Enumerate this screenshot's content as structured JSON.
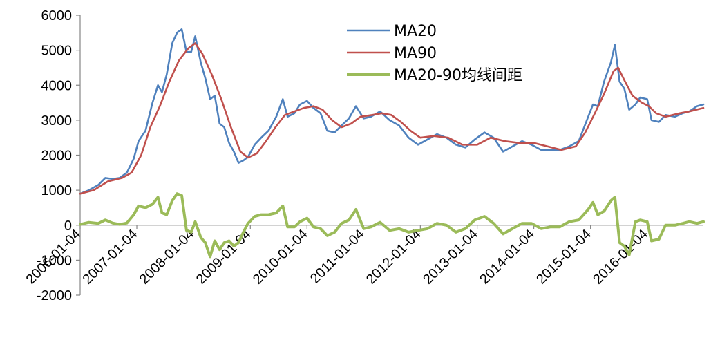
{
  "chart_data": {
    "type": "line",
    "title": "",
    "xlabel": "",
    "ylabel": "",
    "ylim": [
      -2000,
      6000
    ],
    "yticks": [
      6000,
      5000,
      4000,
      3000,
      2000,
      1000,
      0,
      -1000,
      -2000
    ],
    "xlim": [
      "2006-01-04",
      "2016-12-31"
    ],
    "xtick_labels": [
      "2006-01-04",
      "2007-01-04",
      "2008-01-04",
      "2009-01-04",
      "2010-01-04",
      "2011-01-04",
      "2012-01-04",
      "2013-01-04",
      "2014-01-04",
      "2015-01-04",
      "2016-01-04"
    ],
    "grid": false,
    "legend_position": "top-center",
    "series": [
      {
        "name": "MA20",
        "color": "#4f81bd",
        "points": [
          [
            "2006-01-04",
            900
          ],
          [
            "2006-03-01",
            1000
          ],
          [
            "2006-05-01",
            1150
          ],
          [
            "2006-06-15",
            1350
          ],
          [
            "2006-08-01",
            1320
          ],
          [
            "2006-09-15",
            1350
          ],
          [
            "2006-11-01",
            1500
          ],
          [
            "2006-12-15",
            1900
          ],
          [
            "2007-01-15",
            2400
          ],
          [
            "2007-03-01",
            2700
          ],
          [
            "2007-04-15",
            3500
          ],
          [
            "2007-05-20",
            4000
          ],
          [
            "2007-06-15",
            3800
          ],
          [
            "2007-07-15",
            4300
          ],
          [
            "2007-08-20",
            5200
          ],
          [
            "2007-09-20",
            5500
          ],
          [
            "2007-10-20",
            5600
          ],
          [
            "2007-11-20",
            4950
          ],
          [
            "2007-12-20",
            4950
          ],
          [
            "2008-01-15",
            5400
          ],
          [
            "2008-02-20",
            4650
          ],
          [
            "2008-03-20",
            4200
          ],
          [
            "2008-04-20",
            3600
          ],
          [
            "2008-05-20",
            3700
          ],
          [
            "2008-06-20",
            2900
          ],
          [
            "2008-07-20",
            2800
          ],
          [
            "2008-08-20",
            2350
          ],
          [
            "2008-09-20",
            2100
          ],
          [
            "2008-10-20",
            1780
          ],
          [
            "2008-11-20",
            1850
          ],
          [
            "2008-12-20",
            1950
          ],
          [
            "2009-02-01",
            2300
          ],
          [
            "2009-03-15",
            2500
          ],
          [
            "2009-05-01",
            2700
          ],
          [
            "2009-06-20",
            3100
          ],
          [
            "2009-08-01",
            3600
          ],
          [
            "2009-09-01",
            3100
          ],
          [
            "2009-10-15",
            3200
          ],
          [
            "2009-11-20",
            3450
          ],
          [
            "2010-01-04",
            3550
          ],
          [
            "2010-02-15",
            3350
          ],
          [
            "2010-04-01",
            3200
          ],
          [
            "2010-05-15",
            2700
          ],
          [
            "2010-07-01",
            2650
          ],
          [
            "2010-08-15",
            2850
          ],
          [
            "2010-10-01",
            3050
          ],
          [
            "2010-11-15",
            3400
          ],
          [
            "2011-01-04",
            3050
          ],
          [
            "2011-02-20",
            3100
          ],
          [
            "2011-04-20",
            3250
          ],
          [
            "2011-06-20",
            3000
          ],
          [
            "2011-08-20",
            2850
          ],
          [
            "2011-10-20",
            2500
          ],
          [
            "2011-12-20",
            2300
          ],
          [
            "2012-02-20",
            2450
          ],
          [
            "2012-04-20",
            2600
          ],
          [
            "2012-06-20",
            2500
          ],
          [
            "2012-08-20",
            2300
          ],
          [
            "2012-10-20",
            2220
          ],
          [
            "2012-12-20",
            2450
          ],
          [
            "2013-02-20",
            2650
          ],
          [
            "2013-04-20",
            2500
          ],
          [
            "2013-06-20",
            2100
          ],
          [
            "2013-08-20",
            2250
          ],
          [
            "2013-10-20",
            2400
          ],
          [
            "2013-12-20",
            2300
          ],
          [
            "2014-02-20",
            2150
          ],
          [
            "2014-04-20",
            2150
          ],
          [
            "2014-06-20",
            2150
          ],
          [
            "2014-08-20",
            2250
          ],
          [
            "2014-10-20",
            2400
          ],
          [
            "2014-12-20",
            3100
          ],
          [
            "2015-01-20",
            3450
          ],
          [
            "2015-02-20",
            3400
          ],
          [
            "2015-04-01",
            4100
          ],
          [
            "2015-05-15",
            4650
          ],
          [
            "2015-06-10",
            5150
          ],
          [
            "2015-07-10",
            4100
          ],
          [
            "2015-08-10",
            3900
          ],
          [
            "2015-09-10",
            3300
          ],
          [
            "2015-10-20",
            3450
          ],
          [
            "2015-11-20",
            3650
          ],
          [
            "2016-01-04",
            3600
          ],
          [
            "2016-02-01",
            3000
          ],
          [
            "2016-03-20",
            2950
          ],
          [
            "2016-05-01",
            3150
          ],
          [
            "2016-07-01",
            3100
          ],
          [
            "2016-08-20",
            3200
          ],
          [
            "2016-10-01",
            3250
          ],
          [
            "2016-11-20",
            3400
          ],
          [
            "2016-12-31",
            3450
          ]
        ]
      },
      {
        "name": "MA90",
        "color": "#c0504d",
        "points": [
          [
            "2006-01-04",
            900
          ],
          [
            "2006-04-01",
            1000
          ],
          [
            "2006-07-01",
            1250
          ],
          [
            "2006-10-01",
            1350
          ],
          [
            "2006-12-01",
            1500
          ],
          [
            "2007-02-01",
            2000
          ],
          [
            "2007-04-01",
            2800
          ],
          [
            "2007-06-01",
            3400
          ],
          [
            "2007-08-01",
            4100
          ],
          [
            "2007-10-01",
            4700
          ],
          [
            "2007-12-01",
            5050
          ],
          [
            "2008-01-15",
            5200
          ],
          [
            "2008-03-01",
            4900
          ],
          [
            "2008-05-01",
            4300
          ],
          [
            "2008-07-01",
            3600
          ],
          [
            "2008-09-01",
            2800
          ],
          [
            "2008-11-01",
            2100
          ],
          [
            "2008-12-20",
            1930
          ],
          [
            "2009-02-15",
            2050
          ],
          [
            "2009-04-15",
            2400
          ],
          [
            "2009-06-15",
            2800
          ],
          [
            "2009-08-15",
            3150
          ],
          [
            "2009-10-15",
            3250
          ],
          [
            "2009-12-15",
            3350
          ],
          [
            "2010-02-15",
            3400
          ],
          [
            "2010-04-15",
            3300
          ],
          [
            "2010-06-15",
            3000
          ],
          [
            "2010-08-15",
            2800
          ],
          [
            "2010-10-15",
            2900
          ],
          [
            "2010-12-15",
            3100
          ],
          [
            "2011-03-01",
            3150
          ],
          [
            "2011-05-01",
            3200
          ],
          [
            "2011-07-01",
            3150
          ],
          [
            "2011-09-01",
            2950
          ],
          [
            "2011-11-01",
            2700
          ],
          [
            "2012-01-04",
            2500
          ],
          [
            "2012-04-01",
            2550
          ],
          [
            "2012-07-01",
            2500
          ],
          [
            "2012-10-01",
            2300
          ],
          [
            "2013-01-04",
            2300
          ],
          [
            "2013-04-01",
            2500
          ],
          [
            "2013-07-01",
            2400
          ],
          [
            "2013-10-01",
            2350
          ],
          [
            "2014-01-04",
            2350
          ],
          [
            "2014-04-01",
            2250
          ],
          [
            "2014-07-01",
            2150
          ],
          [
            "2014-10-01",
            2250
          ],
          [
            "2014-12-01",
            2650
          ],
          [
            "2015-02-01",
            3200
          ],
          [
            "2015-04-01",
            3750
          ],
          [
            "2015-06-01",
            4400
          ],
          [
            "2015-07-01",
            4500
          ],
          [
            "2015-08-15",
            4100
          ],
          [
            "2015-10-01",
            3700
          ],
          [
            "2015-12-01",
            3500
          ],
          [
            "2016-01-15",
            3400
          ],
          [
            "2016-03-01",
            3200
          ],
          [
            "2016-05-01",
            3100
          ],
          [
            "2016-08-01",
            3200
          ],
          [
            "2016-10-01",
            3250
          ],
          [
            "2016-12-31",
            3350
          ]
        ]
      },
      {
        "name": "MA20-90均线间距",
        "color": "#9bbb59",
        "points": [
          [
            "2006-01-04",
            20
          ],
          [
            "2006-03-01",
            80
          ],
          [
            "2006-05-01",
            50
          ],
          [
            "2006-06-15",
            150
          ],
          [
            "2006-08-01",
            60
          ],
          [
            "2006-09-15",
            20
          ],
          [
            "2006-11-01",
            60
          ],
          [
            "2006-12-15",
            300
          ],
          [
            "2007-01-15",
            550
          ],
          [
            "2007-03-01",
            500
          ],
          [
            "2007-04-15",
            600
          ],
          [
            "2007-05-20",
            800
          ],
          [
            "2007-06-15",
            350
          ],
          [
            "2007-07-15",
            300
          ],
          [
            "2007-08-20",
            700
          ],
          [
            "2007-09-20",
            900
          ],
          [
            "2007-10-20",
            850
          ],
          [
            "2007-11-20",
            -150
          ],
          [
            "2007-12-20",
            -200
          ],
          [
            "2008-01-15",
            100
          ],
          [
            "2008-02-20",
            -350
          ],
          [
            "2008-03-20",
            -500
          ],
          [
            "2008-04-20",
            -900
          ],
          [
            "2008-05-20",
            -450
          ],
          [
            "2008-06-20",
            -700
          ],
          [
            "2008-07-20",
            -500
          ],
          [
            "2008-08-20",
            -450
          ],
          [
            "2008-09-20",
            -600
          ],
          [
            "2008-10-20",
            -500
          ],
          [
            "2008-11-20",
            -200
          ],
          [
            "2008-12-20",
            50
          ],
          [
            "2009-02-01",
            250
          ],
          [
            "2009-03-15",
            300
          ],
          [
            "2009-05-01",
            300
          ],
          [
            "2009-06-20",
            350
          ],
          [
            "2009-08-01",
            550
          ],
          [
            "2009-09-01",
            -50
          ],
          [
            "2009-10-15",
            -50
          ],
          [
            "2009-11-20",
            100
          ],
          [
            "2010-01-04",
            200
          ],
          [
            "2010-02-15",
            -50
          ],
          [
            "2010-04-01",
            -100
          ],
          [
            "2010-05-15",
            -300
          ],
          [
            "2010-07-01",
            -200
          ],
          [
            "2010-08-15",
            50
          ],
          [
            "2010-10-01",
            150
          ],
          [
            "2010-11-15",
            450
          ],
          [
            "2011-01-04",
            -100
          ],
          [
            "2011-02-20",
            -50
          ],
          [
            "2011-04-20",
            80
          ],
          [
            "2011-06-20",
            -150
          ],
          [
            "2011-08-20",
            -100
          ],
          [
            "2011-10-20",
            -200
          ],
          [
            "2011-12-20",
            -150
          ],
          [
            "2012-02-20",
            -100
          ],
          [
            "2012-04-20",
            50
          ],
          [
            "2012-06-20",
            0
          ],
          [
            "2012-08-20",
            -200
          ],
          [
            "2012-10-20",
            -100
          ],
          [
            "2012-12-20",
            150
          ],
          [
            "2013-02-20",
            250
          ],
          [
            "2013-04-20",
            50
          ],
          [
            "2013-06-20",
            -250
          ],
          [
            "2013-08-20",
            -100
          ],
          [
            "2013-10-20",
            50
          ],
          [
            "2013-12-20",
            50
          ],
          [
            "2014-02-20",
            -100
          ],
          [
            "2014-04-20",
            -50
          ],
          [
            "2014-06-20",
            -50
          ],
          [
            "2014-08-20",
            100
          ],
          [
            "2014-10-20",
            150
          ],
          [
            "2014-12-20",
            450
          ],
          [
            "2015-01-20",
            650
          ],
          [
            "2015-02-20",
            300
          ],
          [
            "2015-04-01",
            400
          ],
          [
            "2015-05-15",
            700
          ],
          [
            "2015-06-10",
            800
          ],
          [
            "2015-07-10",
            -500
          ],
          [
            "2015-08-10",
            -600
          ],
          [
            "2015-09-10",
            -850
          ],
          [
            "2015-10-20",
            100
          ],
          [
            "2015-11-20",
            150
          ],
          [
            "2016-01-04",
            100
          ],
          [
            "2016-02-01",
            -450
          ],
          [
            "2016-03-20",
            -400
          ],
          [
            "2016-05-01",
            0
          ],
          [
            "2016-07-01",
            0
          ],
          [
            "2016-08-20",
            50
          ],
          [
            "2016-10-01",
            100
          ],
          [
            "2016-11-20",
            50
          ],
          [
            "2016-12-31",
            100
          ]
        ]
      }
    ]
  }
}
